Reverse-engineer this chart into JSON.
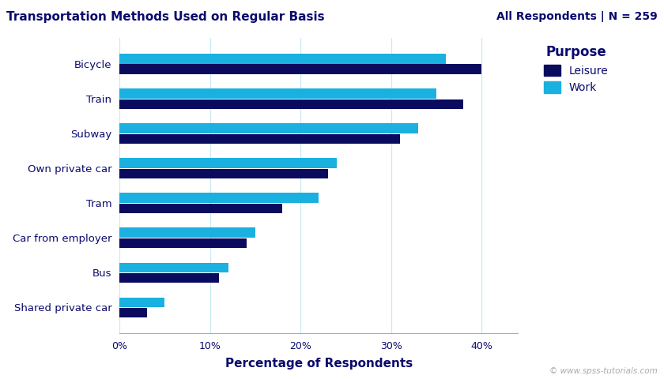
{
  "title": "Transportation Methods Used on Regular Basis",
  "subtitle": "All Respondents | N = 259",
  "xlabel": "Percentage of Respondents",
  "categories": [
    "Bicycle",
    "Train",
    "Subway",
    "Own private car",
    "Tram",
    "Car from employer",
    "Bus",
    "Shared private car"
  ],
  "leisure_values": [
    40,
    38,
    31,
    23,
    18,
    14,
    11,
    3
  ],
  "work_values": [
    36,
    35,
    33,
    24,
    22,
    15,
    12,
    5
  ],
  "leisure_color": "#0a0a5e",
  "work_color": "#1ab0e0",
  "background_color": "#ffffff",
  "title_color": "#0a0a6e",
  "subtitle_color": "#0a0a6e",
  "label_color": "#0a0a6e",
  "legend_title": "Purpose",
  "legend_labels": [
    "Leisure",
    "Work"
  ],
  "watermark": "© www.spss-tutorials.com",
  "xticks": [
    0,
    10,
    20,
    30,
    40
  ],
  "xlim": [
    0,
    44
  ],
  "gridcolor": "#c8eaf5"
}
